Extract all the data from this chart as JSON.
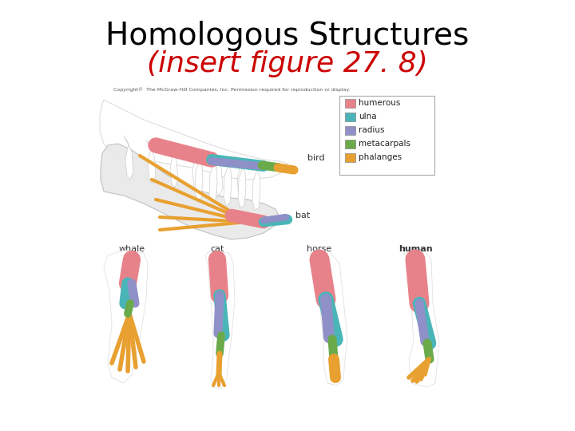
{
  "title_line1": "Homologous Structures",
  "title_line2": "(insert figure 27. 8)",
  "title_line1_color": "#000000",
  "title_line2_color": "#cc0000",
  "title_line1_fontsize": 28,
  "title_line2_fontsize": 26,
  "background_color": "#ffffff",
  "legend_items": [
    {
      "label": "humerous",
      "color": "#e8828a"
    },
    {
      "label": "ulna",
      "color": "#4ab5b8"
    },
    {
      "label": "radius",
      "color": "#9090c8"
    },
    {
      "label": "metacarpals",
      "color": "#6aaa4a"
    },
    {
      "label": "phalanges",
      "color": "#e8a030"
    }
  ],
  "copyright_text": "Copyright©  The McGraw-Hill Companies, Inc. Permission required for reproduction or display.",
  "animal_labels": [
    "whale",
    "cat",
    "horse",
    "human"
  ],
  "title_font_family": "DejaVu Sans",
  "title_font_weight": "normal"
}
